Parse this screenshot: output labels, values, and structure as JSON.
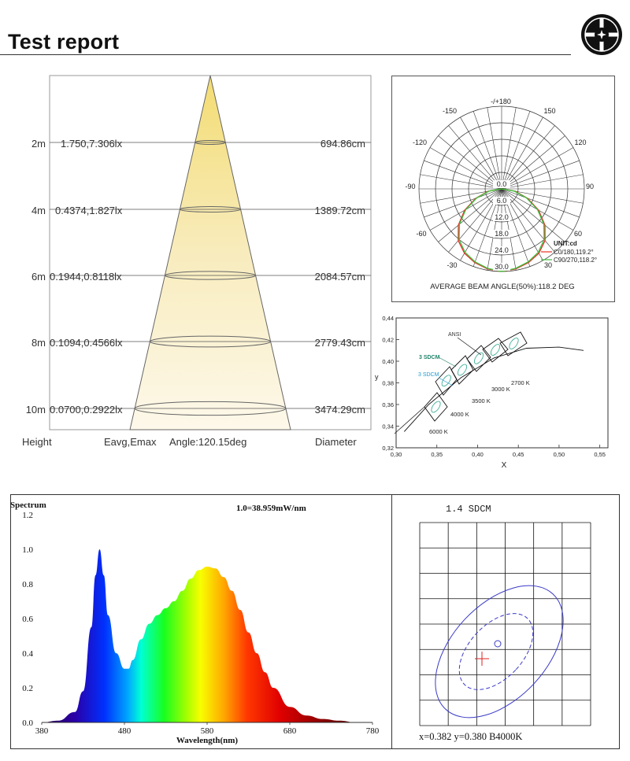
{
  "header": {
    "title": "Test report"
  },
  "cone": {
    "rows": [
      {
        "height": "2m",
        "values": "1.750,7.306lx",
        "diameter": "694.86cm"
      },
      {
        "height": "4m",
        "values": "0.4374,1.827lx",
        "diameter": "1389.72cm"
      },
      {
        "height": "6m",
        "values": "0.1944,0.8118lx",
        "diameter": "2084.57cm"
      },
      {
        "height": "8m",
        "values": "0.1094,0.4566lx",
        "diameter": "2779.43cm"
      },
      {
        "height": "10m",
        "values": "0.0700,0.2922lx",
        "diameter": "3474.29cm"
      }
    ],
    "footer": {
      "height": "Height",
      "eavg": "Eavg,Emax",
      "angle": "Angle:120.15deg",
      "diameter": "Diameter"
    }
  },
  "polar": {
    "angle_labels": {
      "top": "-/+180",
      "m150": "-150",
      "p150": "150",
      "m120": "-120",
      "p120": "120",
      "m90": "-90",
      "p90": "90",
      "m60": "-60",
      "p60": "60",
      "m30": "-30",
      "p30": "30"
    },
    "radial_labels": [
      "0.0",
      "6.0",
      "12.0",
      "18.0",
      "24.0",
      "30.0"
    ],
    "unit": "UNIT:cd",
    "legend": [
      {
        "label": "C0/180,119.2°",
        "color": "#e8312a"
      },
      {
        "label": "C90/270,118.2°",
        "color": "#3cbf3c"
      }
    ],
    "caption": "AVERAGE BEAM ANGLE(50%):118.2 DEG"
  },
  "cie": {
    "y_ticks": [
      "0,44",
      "0,42",
      "0,40",
      "0,38",
      "0,36",
      "0,34",
      "0,32"
    ],
    "x_ticks": [
      "0,30",
      "0,35",
      "0,40",
      "0,45",
      "0,50",
      "0,55"
    ],
    "ylabel": "y",
    "xlabel": "X",
    "labels": {
      "ansi": "ANSI",
      "sdcm3a": "3 SDCM",
      "sdcm3b": "3 SDCM",
      "k2700": "2700 K",
      "k3000": "3000 K",
      "k3500": "3500 K",
      "k4000": "4000 K",
      "k6000": "6000 K"
    }
  },
  "spectrum": {
    "title": "Spectrum",
    "scale": "1.0=38.959mW/nm",
    "xlabel": "Wavelength(nm)",
    "y_ticks": [
      "1.2",
      "1.0",
      "0.8",
      "0.6",
      "0.4",
      "0.2",
      "0.0"
    ],
    "x_ticks": [
      "380",
      "480",
      "580",
      "680",
      "780"
    ]
  },
  "sdcm": {
    "title": "1.4 SDCM",
    "readout": "x=0.382 y=0.380 B4000K"
  },
  "chart_data": [
    {
      "type": "line",
      "title": "Spectrum",
      "xlabel": "Wavelength(nm)",
      "xlim": [
        380,
        780
      ],
      "ylim": [
        0,
        1.2
      ],
      "x": [
        380,
        400,
        420,
        430,
        440,
        445,
        450,
        455,
        460,
        470,
        480,
        485,
        490,
        500,
        510,
        520,
        530,
        540,
        550,
        560,
        570,
        580,
        590,
        600,
        610,
        620,
        630,
        640,
        650,
        660,
        680,
        700,
        720,
        740,
        760,
        780
      ],
      "values": [
        0.0,
        0.01,
        0.06,
        0.18,
        0.55,
        0.85,
        1.0,
        0.85,
        0.62,
        0.4,
        0.31,
        0.31,
        0.36,
        0.48,
        0.57,
        0.62,
        0.66,
        0.7,
        0.76,
        0.83,
        0.88,
        0.9,
        0.89,
        0.84,
        0.76,
        0.65,
        0.52,
        0.4,
        0.29,
        0.2,
        0.09,
        0.04,
        0.02,
        0.01,
        0.0,
        0.0
      ]
    },
    {
      "type": "line",
      "title": "",
      "ylabel": "y",
      "xlabel": "X",
      "xlim": [
        0.3,
        0.56
      ],
      "ylim": [
        0.32,
        0.44
      ],
      "series": [
        {
          "name": "",
          "x": [
            0.31,
            0.34,
            0.38,
            0.42,
            0.46,
            0.5,
            0.53
          ],
          "values": [
            0.335,
            0.36,
            0.385,
            0.403,
            0.412,
            0.413,
            0.41
          ]
        }
      ]
    },
    {
      "type": "line",
      "title": "AVERAGE BEAM ANGLE(50%):118.2 DEG",
      "series": [
        {
          "name": "C0/180,119.2°",
          "values": [
            30.0,
            29.5,
            28.5,
            27.0,
            24.5,
            20.5,
            15.5,
            10.0,
            5.0,
            0.0
          ]
        },
        {
          "name": "C90/270,118.2°",
          "values": [
            30.0,
            29.3,
            28.2,
            26.6,
            24.0,
            20.0,
            15.0,
            9.6,
            4.6,
            0.0
          ]
        }
      ],
      "x": [
        0,
        10,
        20,
        30,
        40,
        50,
        60,
        70,
        80,
        90
      ],
      "ylim": [
        0,
        30
      ]
    }
  ]
}
